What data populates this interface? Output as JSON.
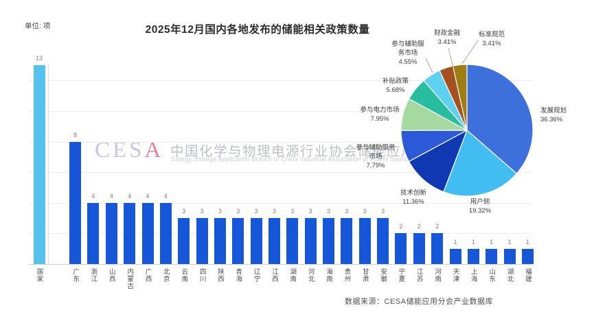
{
  "header": {
    "unit_label": "单位: 项",
    "title": "2025年12月国内各地发布的储能相关政策数量"
  },
  "watermark": {
    "logo_prefix": "CES",
    "logo_suffix": "A",
    "cn": "中国化学与物理电源行业协会储能应用分会",
    "en": "Energy Storage Application Branch of China Industrial Association of Power Sources"
  },
  "source": "数据来源：CESA储能应用分会产业数据库",
  "colors": {
    "bar_national": "#56c2ef",
    "bar_province": "#1656d8",
    "grid": "#ededed",
    "axis": "#cccccc",
    "leader": "#9e9e9e"
  },
  "chart_data": [
    {
      "type": "bar",
      "title": "2025年12月国内各地发布的储能相关政策数量",
      "ylabel": "单位: 项",
      "ylim": [
        0,
        14
      ],
      "grid_step": 2,
      "categories": [
        "国家",
        "广东",
        "浙江",
        "山西",
        "内蒙古",
        "广西",
        "北京",
        "云南",
        "四川",
        "陕西",
        "青海",
        "辽宁",
        "江西",
        "湖南",
        "河北",
        "海南",
        "贵州",
        "甘肃",
        "安徽",
        "宁夏",
        "江苏",
        "河南",
        "天津",
        "上海",
        "山东",
        "湖北",
        "福建"
      ],
      "values": [
        13,
        8,
        4,
        4,
        4,
        4,
        4,
        3,
        3,
        3,
        3,
        3,
        3,
        3,
        3,
        3,
        3,
        3,
        3,
        2,
        2,
        2,
        1,
        1,
        1,
        1,
        1
      ]
    },
    {
      "type": "pie",
      "legend_position": "around-slices",
      "slices": [
        {
          "name": "发展规划",
          "pct": "36.36%",
          "value": 36.36,
          "color": "#3e70dc",
          "lines": [
            "发展规划"
          ]
        },
        {
          "name": "用户侧",
          "pct": "19.32%",
          "value": 19.32,
          "color": "#41bdf1",
          "lines": [
            "用户侧"
          ]
        },
        {
          "name": "技术创新",
          "pct": "11.36%",
          "value": 11.36,
          "color": "#1038b2",
          "lines": [
            "技术创新"
          ]
        },
        {
          "name": "参与辅助服务市场",
          "pct": "7.79%",
          "value": 7.79,
          "color": "#2b59d8",
          "lines": [
            "参与辅助服务",
            "市场"
          ]
        },
        {
          "name": "参与电力市场",
          "pct": "7.95%",
          "value": 7.95,
          "color": "#a5d9a0",
          "lines": [
            "参与电力市场"
          ]
        },
        {
          "name": "补贴政策",
          "pct": "5.68%",
          "value": 5.68,
          "color": "#28bd9f",
          "lines": [
            "补贴政策"
          ]
        },
        {
          "name": "参与辅助服务市场",
          "pct": "4.55%",
          "value": 4.55,
          "color": "#5ed1f0",
          "lines": [
            "参与辅助服",
            "务市场"
          ]
        },
        {
          "name": "财政金融",
          "pct": "3.41%",
          "value": 3.41,
          "color": "#a4511f",
          "lines": [
            "财政金融"
          ]
        },
        {
          "name": "标准规范",
          "pct": "3.41%",
          "value": 3.41,
          "color": "#9e7d15",
          "lines": [
            "标准规范"
          ]
        }
      ]
    }
  ]
}
